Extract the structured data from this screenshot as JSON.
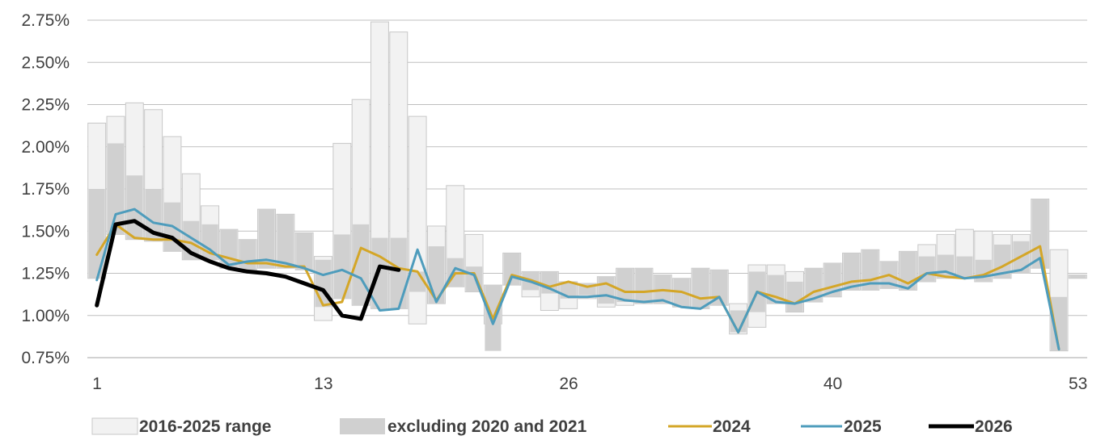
{
  "chart_data": {
    "type": "bar+line",
    "x_range": [
      1,
      53
    ],
    "x_ticks": [
      "1",
      "13",
      "26",
      "40",
      "53"
    ],
    "y_range": [
      0.75,
      2.75
    ],
    "y_ticks": [
      "0.75%",
      "1.00%",
      "1.25%",
      "1.50%",
      "1.75%",
      "2.00%",
      "2.25%",
      "2.50%",
      "2.75%"
    ],
    "grid": "horizontal",
    "legend_position": "bottom",
    "legend": {
      "range_label": "2016-2025 range",
      "excl_label": "excluding 2020 and 2021",
      "s2024_label": "2024",
      "s2025_label": "2025",
      "s2026_label": "2026"
    },
    "colors": {
      "range_fill": "#f2f2f2",
      "range_stroke": "#c8c8c8",
      "excl_fill": "#d0d0d0",
      "s2024": "#d4a627",
      "s2025": "#4e9cbc",
      "s2026": "#000000",
      "grid": "#bfbfbf",
      "axis": "#a6a6a6"
    },
    "weeks": [
      1,
      2,
      3,
      4,
      5,
      6,
      7,
      8,
      9,
      10,
      11,
      12,
      13,
      14,
      15,
      16,
      17,
      18,
      19,
      20,
      21,
      22,
      23,
      24,
      25,
      26,
      27,
      28,
      29,
      30,
      31,
      32,
      33,
      34,
      35,
      36,
      37,
      38,
      39,
      40,
      41,
      42,
      43,
      44,
      45,
      46,
      47,
      48,
      49,
      50,
      51,
      52,
      53
    ],
    "range_low": [
      1.22,
      1.48,
      1.45,
      1.44,
      1.38,
      1.33,
      1.33,
      1.28,
      1.27,
      1.28,
      1.28,
      1.27,
      0.97,
      1.1,
      1.06,
      1.04,
      1.04,
      0.95,
      1.07,
      1.17,
      1.14,
      0.95,
      1.18,
      1.11,
      1.03,
      1.04,
      1.1,
      1.05,
      1.06,
      1.07,
      1.07,
      1.05,
      1.04,
      1.06,
      0.89,
      0.93,
      1.07,
      1.02,
      1.08,
      1.11,
      1.15,
      1.15,
      1.16,
      1.15,
      1.2,
      1.22,
      1.22,
      1.2,
      1.22,
      1.25,
      1.28,
      0.79,
      1.22
    ],
    "range_high": [
      2.14,
      2.18,
      2.26,
      2.22,
      2.06,
      1.84,
      1.65,
      1.51,
      1.45,
      1.63,
      1.6,
      1.49,
      1.35,
      2.02,
      2.28,
      2.74,
      2.68,
      2.18,
      1.53,
      1.77,
      1.48,
      1.18,
      1.37,
      1.26,
      1.26,
      1.2,
      1.19,
      1.23,
      1.28,
      1.28,
      1.24,
      1.22,
      1.28,
      1.27,
      1.07,
      1.3,
      1.3,
      1.26,
      1.28,
      1.31,
      1.37,
      1.39,
      1.32,
      1.38,
      1.42,
      1.48,
      1.51,
      1.5,
      1.48,
      1.48,
      1.69,
      1.39,
      1.24
    ],
    "excl_low": [
      1.22,
      1.48,
      1.45,
      1.44,
      1.38,
      1.33,
      1.33,
      1.28,
      1.27,
      1.28,
      1.28,
      1.27,
      1.05,
      1.1,
      1.06,
      1.04,
      1.04,
      1.14,
      1.07,
      1.17,
      1.14,
      0.79,
      1.18,
      1.15,
      1.13,
      1.1,
      1.12,
      1.07,
      1.08,
      1.07,
      1.07,
      1.05,
      1.04,
      1.06,
      0.9,
      1.02,
      1.07,
      1.02,
      1.08,
      1.11,
      1.15,
      1.15,
      1.16,
      1.15,
      1.2,
      1.22,
      1.22,
      1.2,
      1.22,
      1.25,
      1.28,
      0.79,
      1.22
    ],
    "excl_high": [
      1.75,
      2.02,
      1.83,
      1.75,
      1.67,
      1.56,
      1.54,
      1.51,
      1.45,
      1.63,
      1.6,
      1.49,
      1.33,
      1.48,
      1.54,
      1.46,
      1.46,
      1.26,
      1.41,
      1.34,
      1.29,
      1.18,
      1.37,
      1.26,
      1.26,
      1.2,
      1.19,
      1.23,
      1.28,
      1.28,
      1.24,
      1.22,
      1.28,
      1.27,
      1.03,
      1.26,
      1.24,
      1.2,
      1.28,
      1.31,
      1.37,
      1.39,
      1.32,
      1.38,
      1.35,
      1.36,
      1.35,
      1.33,
      1.42,
      1.44,
      1.69,
      1.11,
      1.24
    ],
    "series": [
      {
        "name": "2024",
        "values": [
          1.36,
          1.54,
          1.46,
          1.45,
          1.45,
          1.43,
          1.37,
          1.34,
          1.31,
          1.31,
          1.29,
          1.29,
          1.06,
          1.08,
          1.4,
          1.35,
          1.28,
          1.26,
          1.09,
          1.25,
          1.25,
          0.98,
          1.24,
          1.21,
          1.17,
          1.2,
          1.17,
          1.19,
          1.14,
          1.14,
          1.15,
          1.14,
          1.1,
          1.11,
          0.9,
          1.14,
          1.11,
          1.07,
          1.14,
          1.17,
          1.2,
          1.21,
          1.24,
          1.19,
          1.25,
          1.23,
          1.22,
          1.24,
          1.29,
          1.35,
          1.41,
          0.8,
          null
        ]
      },
      {
        "name": "2025",
        "values": [
          1.21,
          1.6,
          1.63,
          1.55,
          1.53,
          1.46,
          1.39,
          1.3,
          1.32,
          1.33,
          1.31,
          1.28,
          1.24,
          1.27,
          1.22,
          1.03,
          1.04,
          1.39,
          1.08,
          1.28,
          1.24,
          0.95,
          1.23,
          1.2,
          1.16,
          1.11,
          1.11,
          1.12,
          1.09,
          1.08,
          1.09,
          1.05,
          1.04,
          1.11,
          0.9,
          1.14,
          1.08,
          1.07,
          1.1,
          1.14,
          1.17,
          1.19,
          1.19,
          1.16,
          1.25,
          1.26,
          1.22,
          1.23,
          1.25,
          1.27,
          1.34,
          0.8,
          null
        ]
      },
      {
        "name": "2026",
        "values": [
          1.06,
          1.54,
          1.56,
          1.49,
          1.46,
          1.37,
          1.32,
          1.28,
          1.26,
          1.25,
          1.23,
          1.19,
          1.15,
          1.0,
          0.98,
          1.29,
          1.27,
          null,
          null,
          null,
          null,
          null,
          null,
          null,
          null,
          null,
          null,
          null,
          null,
          null,
          null,
          null,
          null,
          null,
          null,
          null,
          null,
          null,
          null,
          null,
          null,
          null,
          null,
          null,
          null,
          null,
          null,
          null,
          null,
          null,
          null,
          null,
          null
        ]
      }
    ]
  }
}
